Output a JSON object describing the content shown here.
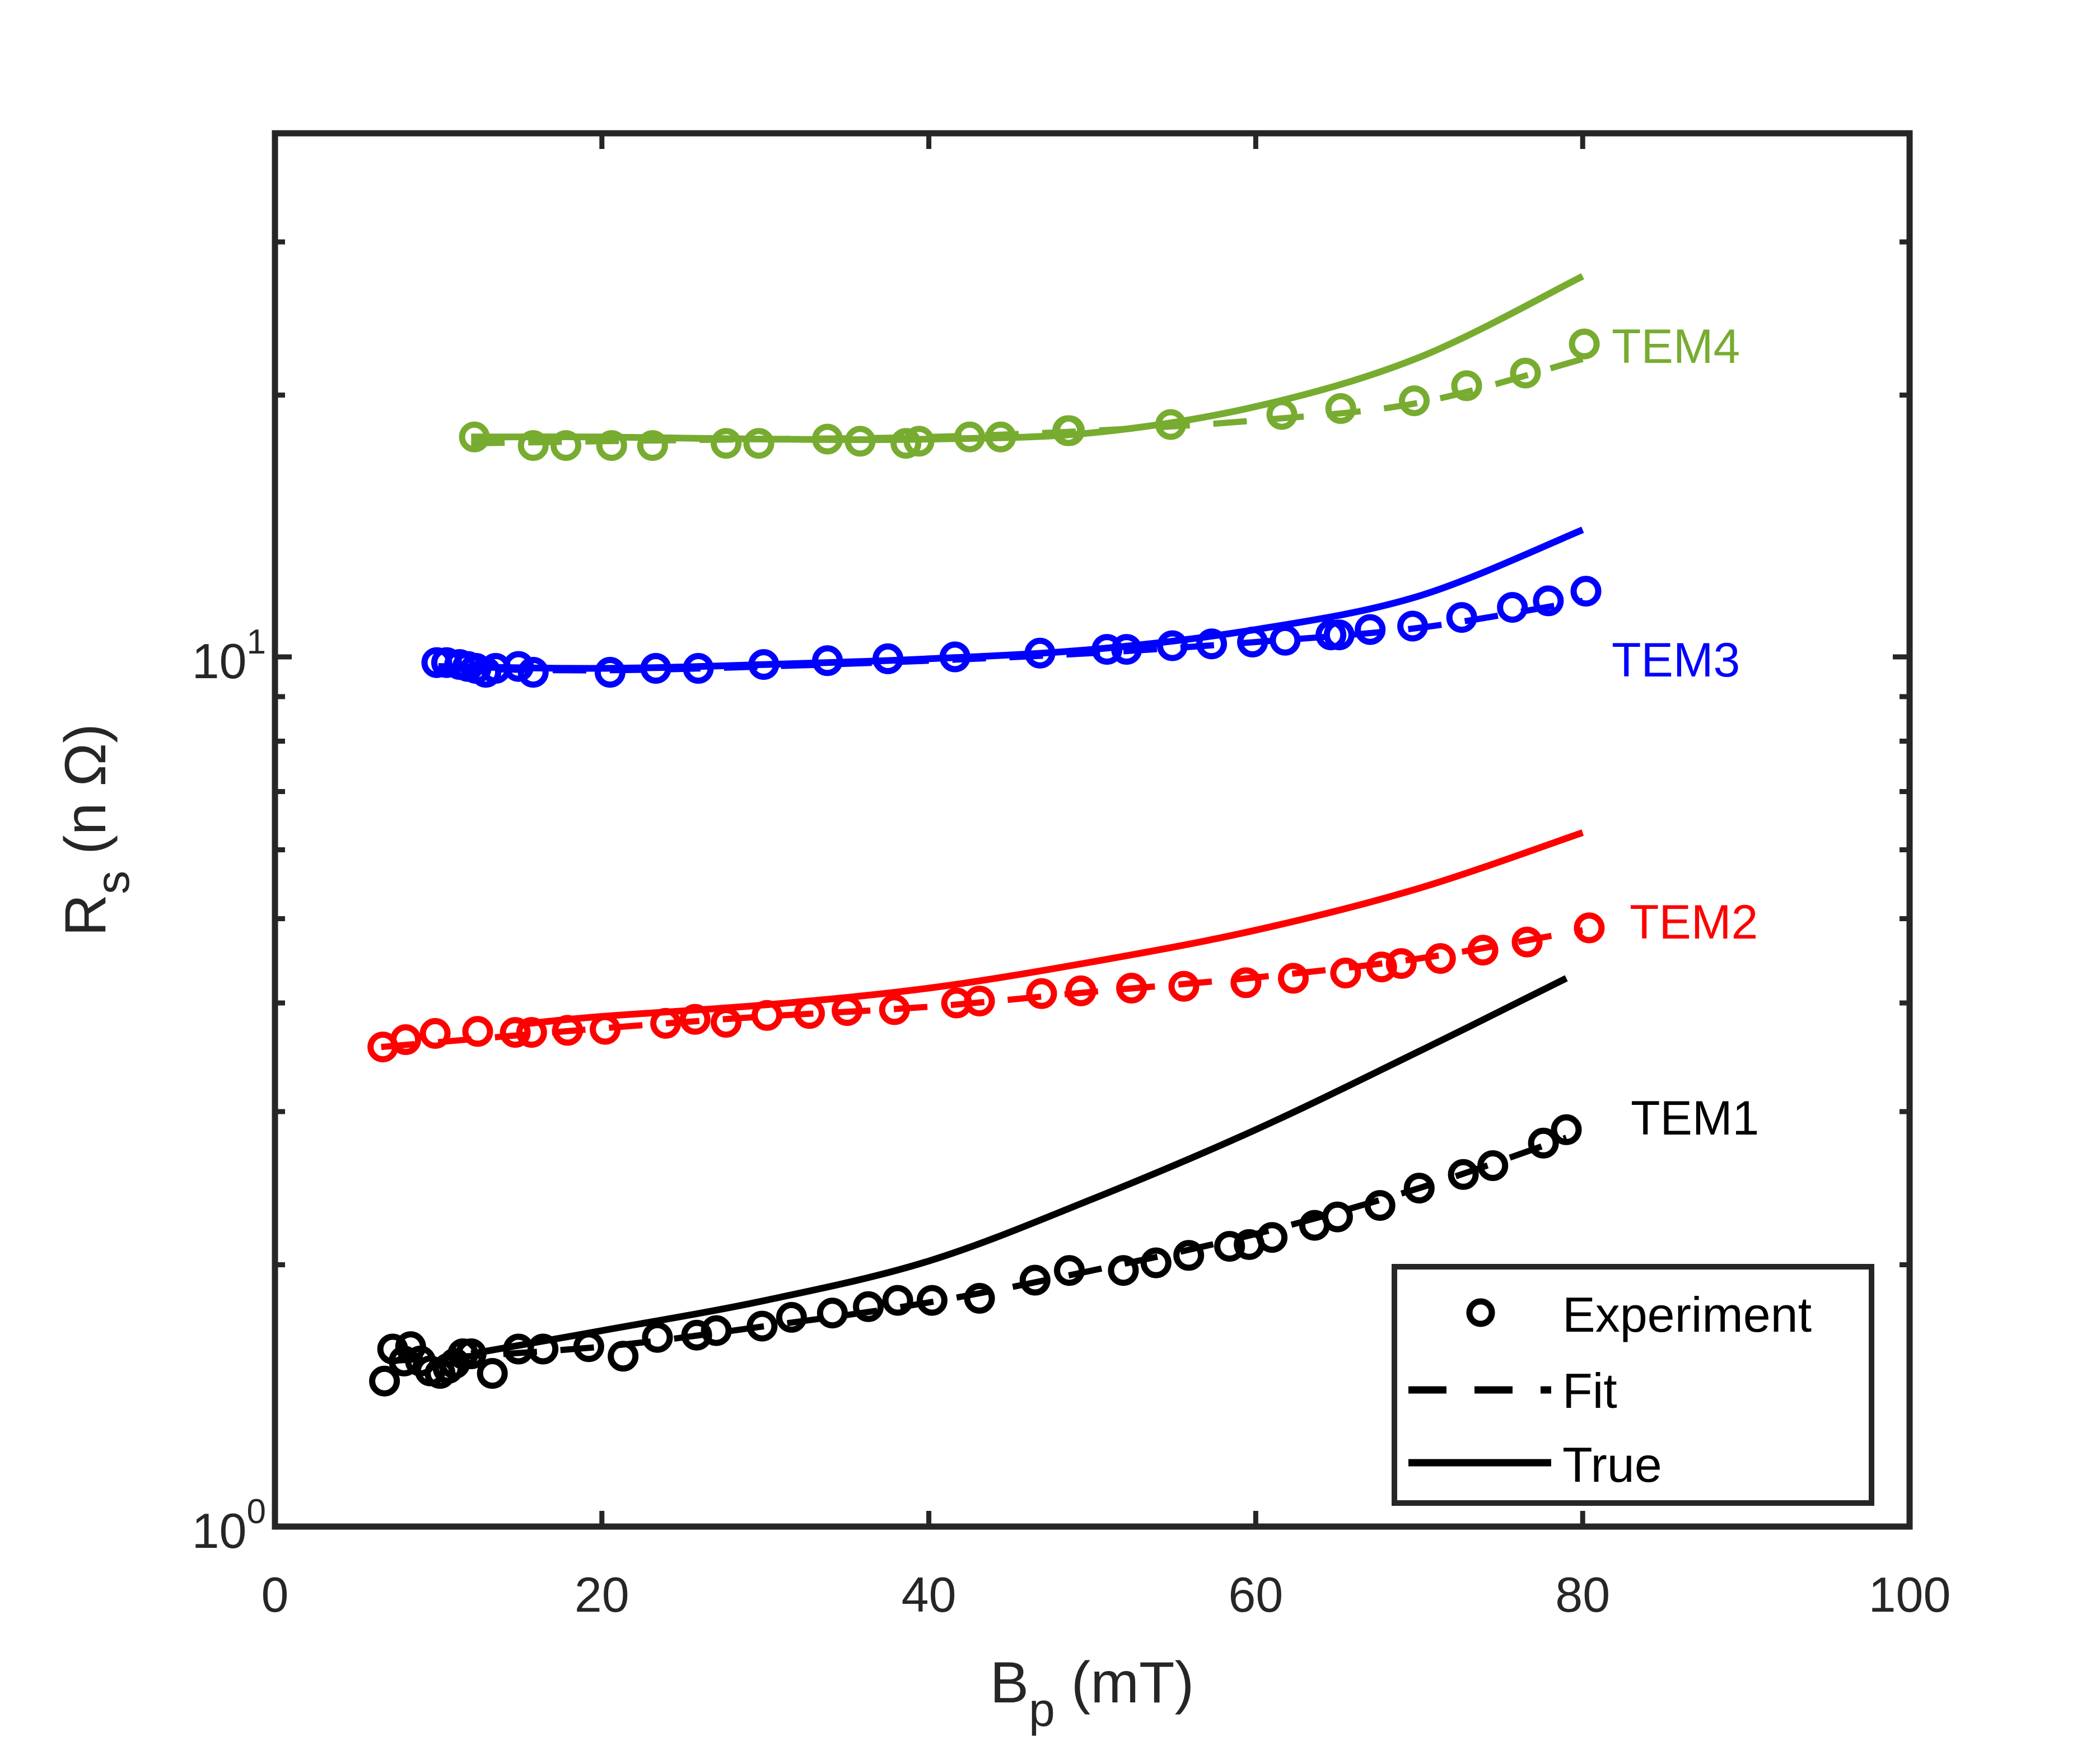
{
  "chart_data": {
    "type": "line",
    "title": "",
    "xlabel": "B",
    "xlabel_sub": "p",
    "xlabel_unit": " (mT)",
    "ylabel": "R",
    "ylabel_sub": "s",
    "ylabel_unit": " (n Ω)",
    "xlim": [
      0,
      100
    ],
    "ylim": [
      1,
      40
    ],
    "yscale": "log",
    "grid": false,
    "x_ticks": [
      "0",
      "20",
      "40",
      "60",
      "80",
      "100"
    ],
    "y_ticks": [
      {
        "base": "10",
        "exp": "0"
      },
      {
        "base": "10",
        "exp": "1"
      }
    ],
    "legend": {
      "position": "bottom-right",
      "entries": [
        {
          "label": "Experiment",
          "style": "marker-circle"
        },
        {
          "label": "Fit",
          "style": "dashed"
        },
        {
          "label": "True",
          "style": "solid"
        }
      ]
    },
    "series": [
      {
        "name": "TEM1",
        "color": "#000000",
        "experiment_x": [
          6.7,
          7.2,
          7.9,
          8.3,
          8.9,
          9.5,
          10.1,
          10.6,
          11.0,
          11.5,
          12.0,
          13.3,
          14.9,
          16.4,
          19.2,
          21.3,
          23.4,
          25.8,
          27.0,
          29.8,
          31.6,
          34.1,
          36.3,
          38.1,
          40.2,
          43.1,
          46.5,
          48.6,
          51.9,
          53.9,
          55.9,
          58.4,
          59.6,
          61.0,
          63.6,
          65.0,
          67.6,
          70.0,
          72.7,
          74.5,
          77.6,
          79.0
        ],
        "experiment_y": [
          1.47,
          1.6,
          1.55,
          1.61,
          1.55,
          1.51,
          1.5,
          1.52,
          1.54,
          1.58,
          1.58,
          1.5,
          1.6,
          1.6,
          1.61,
          1.57,
          1.65,
          1.66,
          1.68,
          1.7,
          1.74,
          1.76,
          1.79,
          1.82,
          1.82,
          1.83,
          1.92,
          1.97,
          1.97,
          2.01,
          2.05,
          2.1,
          2.11,
          2.15,
          2.22,
          2.27,
          2.34,
          2.45,
          2.54,
          2.6,
          2.76,
          2.86
        ],
        "fit_x": [
          7,
          20,
          30,
          40,
          50,
          60,
          70,
          79
        ],
        "fit_y": [
          1.55,
          1.61,
          1.7,
          1.81,
          1.97,
          2.17,
          2.45,
          2.8
        ],
        "true_x": [
          12,
          20,
          30,
          40,
          50,
          60,
          70,
          79
        ],
        "true_y": [
          1.58,
          1.68,
          1.82,
          2.02,
          2.38,
          2.86,
          3.52,
          4.27
        ]
      },
      {
        "name": "TEM2",
        "color": "#ff0000",
        "experiment_x": [
          6.6,
          8.0,
          9.8,
          12.4,
          14.7,
          15.7,
          17.9,
          20.2,
          23.9,
          25.7,
          27.6,
          30.1,
          32.7,
          35.0,
          37.9,
          41.7,
          43.1,
          46.9,
          49.3,
          52.4,
          55.6,
          59.4,
          62.3,
          65.5,
          67.7,
          68.9,
          71.3,
          73.9,
          76.6,
          80.4
        ],
        "experiment_y": [
          3.56,
          3.63,
          3.69,
          3.71,
          3.7,
          3.7,
          3.72,
          3.73,
          3.79,
          3.83,
          3.8,
          3.87,
          3.89,
          3.92,
          3.93,
          4.0,
          4.02,
          4.1,
          4.13,
          4.16,
          4.18,
          4.22,
          4.27,
          4.33,
          4.4,
          4.44,
          4.5,
          4.6,
          4.7,
          4.88
        ],
        "fit_x": [
          6.5,
          20,
          30,
          40,
          50,
          60,
          70,
          80
        ],
        "fit_y": [
          3.56,
          3.74,
          3.86,
          3.96,
          4.12,
          4.28,
          4.5,
          4.85
        ],
        "true_x": [
          15,
          20,
          30,
          40,
          50,
          60,
          70,
          80
        ],
        "true_y": [
          3.78,
          3.86,
          3.98,
          4.16,
          4.46,
          4.85,
          5.42,
          6.28
        ]
      },
      {
        "name": "TEM3",
        "color": "#0000ff",
        "experiment_x": [
          9.9,
          10.5,
          11.3,
          11.8,
          12.3,
          12.9,
          13.5,
          14.9,
          15.8,
          20.5,
          23.3,
          25.9,
          29.9,
          33.8,
          37.5,
          41.6,
          46.8,
          50.9,
          52.1,
          54.9,
          57.3,
          59.8,
          61.8,
          64.6,
          65.1,
          67.0,
          69.6,
          72.6,
          75.7,
          77.9,
          80.2
        ],
        "experiment_y": [
          9.85,
          9.85,
          9.8,
          9.75,
          9.7,
          9.6,
          9.7,
          9.75,
          9.6,
          9.6,
          9.7,
          9.7,
          9.8,
          9.9,
          9.95,
          10.0,
          10.1,
          10.2,
          10.2,
          10.3,
          10.35,
          10.4,
          10.45,
          10.6,
          10.6,
          10.75,
          10.85,
          11.1,
          11.4,
          11.6,
          11.9
        ],
        "fit_x": [
          10,
          20,
          30,
          40,
          50,
          60,
          70,
          80
        ],
        "fit_y": [
          9.7,
          9.65,
          9.75,
          9.9,
          10.1,
          10.4,
          10.8,
          11.6
        ],
        "true_x": [
          10,
          20,
          30,
          40,
          50,
          60,
          70,
          80
        ],
        "true_y": [
          9.75,
          9.7,
          9.8,
          9.95,
          10.2,
          10.75,
          11.75,
          14.0
        ]
      },
      {
        "name": "TEM4",
        "color": "#77ac30",
        "experiment_x": [
          12.2,
          15.8,
          17.8,
          20.6,
          23.1,
          27.6,
          29.6,
          33.8,
          35.8,
          38.6,
          39.4,
          42.5,
          44.4,
          48.5,
          48.6,
          54.8,
          61.6,
          65.2,
          69.7,
          72.9,
          76.5,
          80.1
        ],
        "experiment_y": [
          17.9,
          17.5,
          17.5,
          17.5,
          17.5,
          17.6,
          17.6,
          17.8,
          17.7,
          17.6,
          17.7,
          17.9,
          17.9,
          18.2,
          18.2,
          18.5,
          19.0,
          19.3,
          19.7,
          20.5,
          21.2,
          22.9
        ],
        "fit_x": [
          12,
          20,
          30,
          40,
          50,
          60,
          70,
          80
        ],
        "fit_y": [
          17.6,
          17.7,
          17.8,
          17.9,
          18.2,
          18.7,
          19.6,
          22.0
        ],
        "true_x": [
          12,
          20,
          30,
          40,
          50,
          60,
          70,
          80
        ],
        "true_y": [
          17.9,
          17.9,
          17.8,
          17.8,
          18.1,
          19.4,
          22.1,
          27.4
        ]
      }
    ]
  }
}
